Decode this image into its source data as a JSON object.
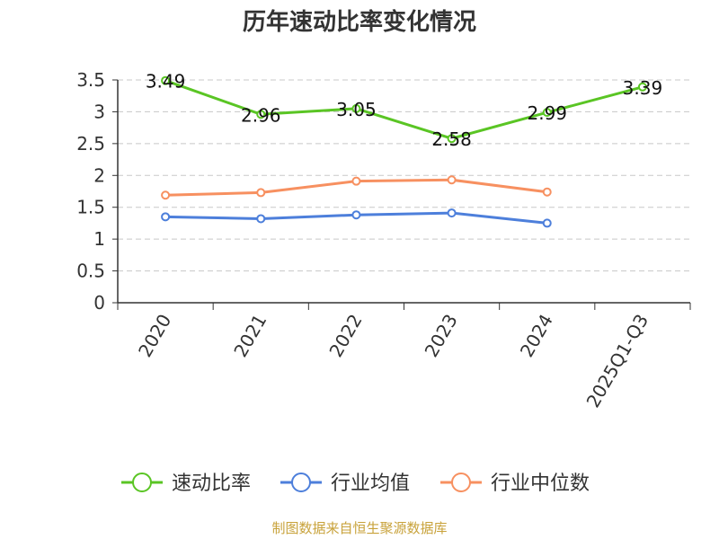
{
  "chart_data": {
    "type": "line",
    "title": "历年速动比率变化情况",
    "categories": [
      "2020",
      "2021",
      "2022",
      "2023",
      "2024",
      "2025Q1-Q3"
    ],
    "ylim": [
      0,
      3.5
    ],
    "yticks": [
      "0",
      "0.5",
      "1",
      "1.5",
      "2",
      "2.5",
      "3",
      "3.5"
    ],
    "grid": "horizontal dashed",
    "legend_position": "bottom",
    "series": [
      {
        "name": "速动比率",
        "color": "#5ac524",
        "values": [
          3.49,
          2.96,
          3.05,
          2.58,
          2.99,
          3.39
        ],
        "labels": [
          "3.49",
          "2.96",
          "3.05",
          "2.58",
          "2.99",
          "3.39"
        ]
      },
      {
        "name": "行业均值",
        "color": "#4d7fdb",
        "values": [
          1.35,
          1.32,
          1.38,
          1.41,
          1.25,
          null
        ]
      },
      {
        "name": "行业中位数",
        "color": "#f79060",
        "values": [
          1.69,
          1.73,
          1.91,
          1.93,
          1.74,
          null
        ]
      }
    ],
    "source": "制图数据来自恒生聚源数据库"
  }
}
